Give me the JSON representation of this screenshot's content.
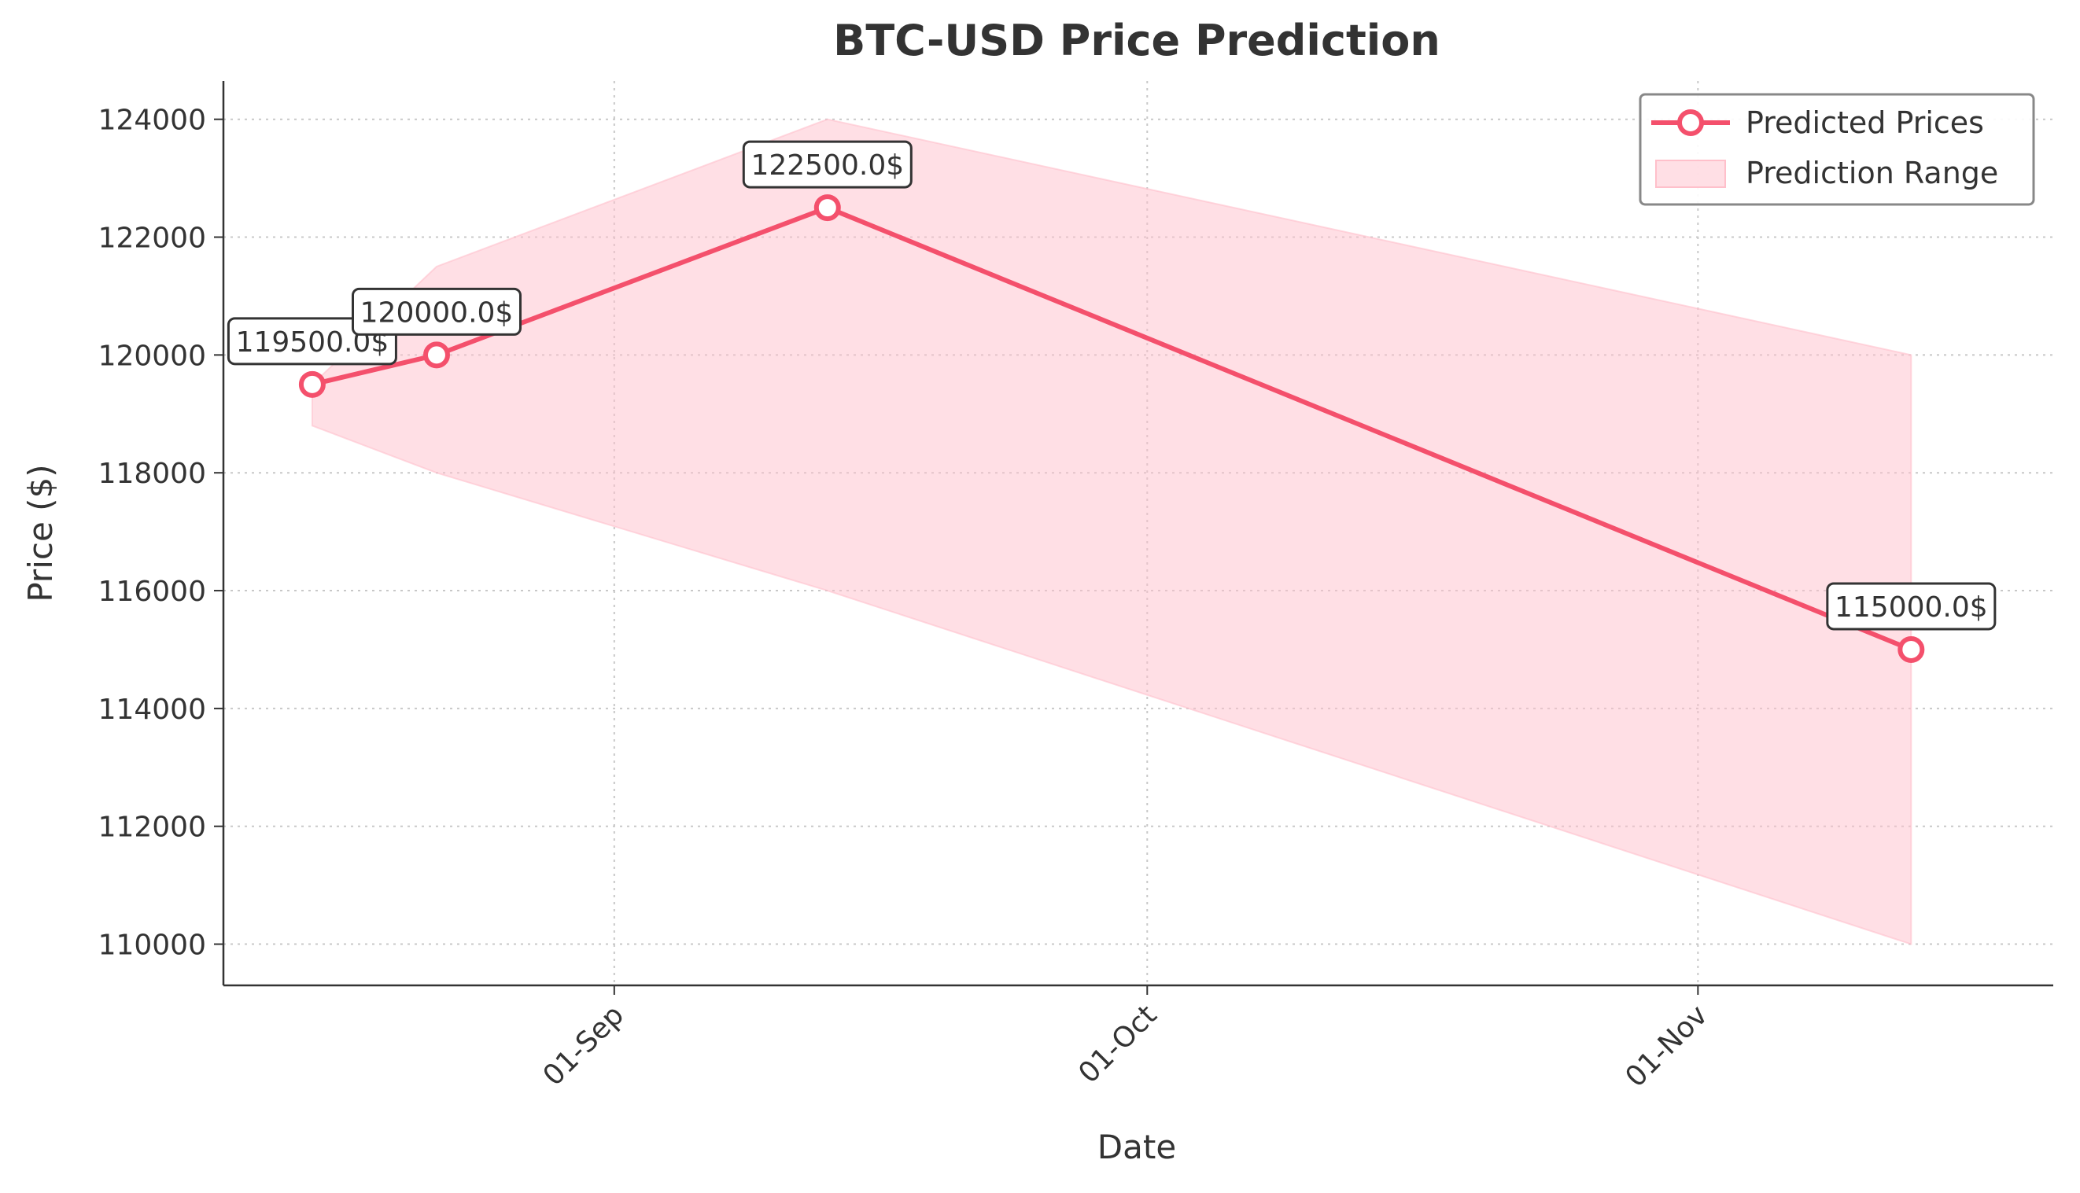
{
  "chart_data": {
    "type": "line",
    "title": "BTC-USD Price Prediction",
    "xlabel": "Date",
    "ylabel": "Price ($)",
    "x_axis": "date",
    "x_range": [
      "2025-08-10",
      "2025-11-21"
    ],
    "x_ticks": [
      {
        "date": "2025-09-01",
        "label": "01-Sep"
      },
      {
        "date": "2025-10-01",
        "label": "01-Oct"
      },
      {
        "date": "2025-11-01",
        "label": "01-Nov"
      }
    ],
    "ylim": [
      109300,
      124650
    ],
    "y_ticks": [
      110000,
      112000,
      114000,
      116000,
      118000,
      120000,
      122000,
      124000
    ],
    "grid": true,
    "legend_position": "top-right",
    "series": [
      {
        "name": "Predicted Prices",
        "color": "#f4506c",
        "points": [
          {
            "date": "2025-08-15",
            "value": 119500
          },
          {
            "date": "2025-08-22",
            "value": 120000
          },
          {
            "date": "2025-09-13",
            "value": 122500
          },
          {
            "date": "2025-11-13",
            "value": 115000
          }
        ]
      }
    ],
    "range": {
      "name": "Prediction Range",
      "color": "#ffc0cb",
      "points": [
        {
          "date": "2025-08-15",
          "low": 118800,
          "high": 119500
        },
        {
          "date": "2025-08-22",
          "low": 118000,
          "high": 121500
        },
        {
          "date": "2025-09-13",
          "low": 116000,
          "high": 124000
        },
        {
          "date": "2025-11-13",
          "low": 110000,
          "high": 120000
        }
      ]
    },
    "annotations": [
      "119500.0$",
      "120000.0$",
      "122500.0$",
      "115000.0$"
    ]
  }
}
